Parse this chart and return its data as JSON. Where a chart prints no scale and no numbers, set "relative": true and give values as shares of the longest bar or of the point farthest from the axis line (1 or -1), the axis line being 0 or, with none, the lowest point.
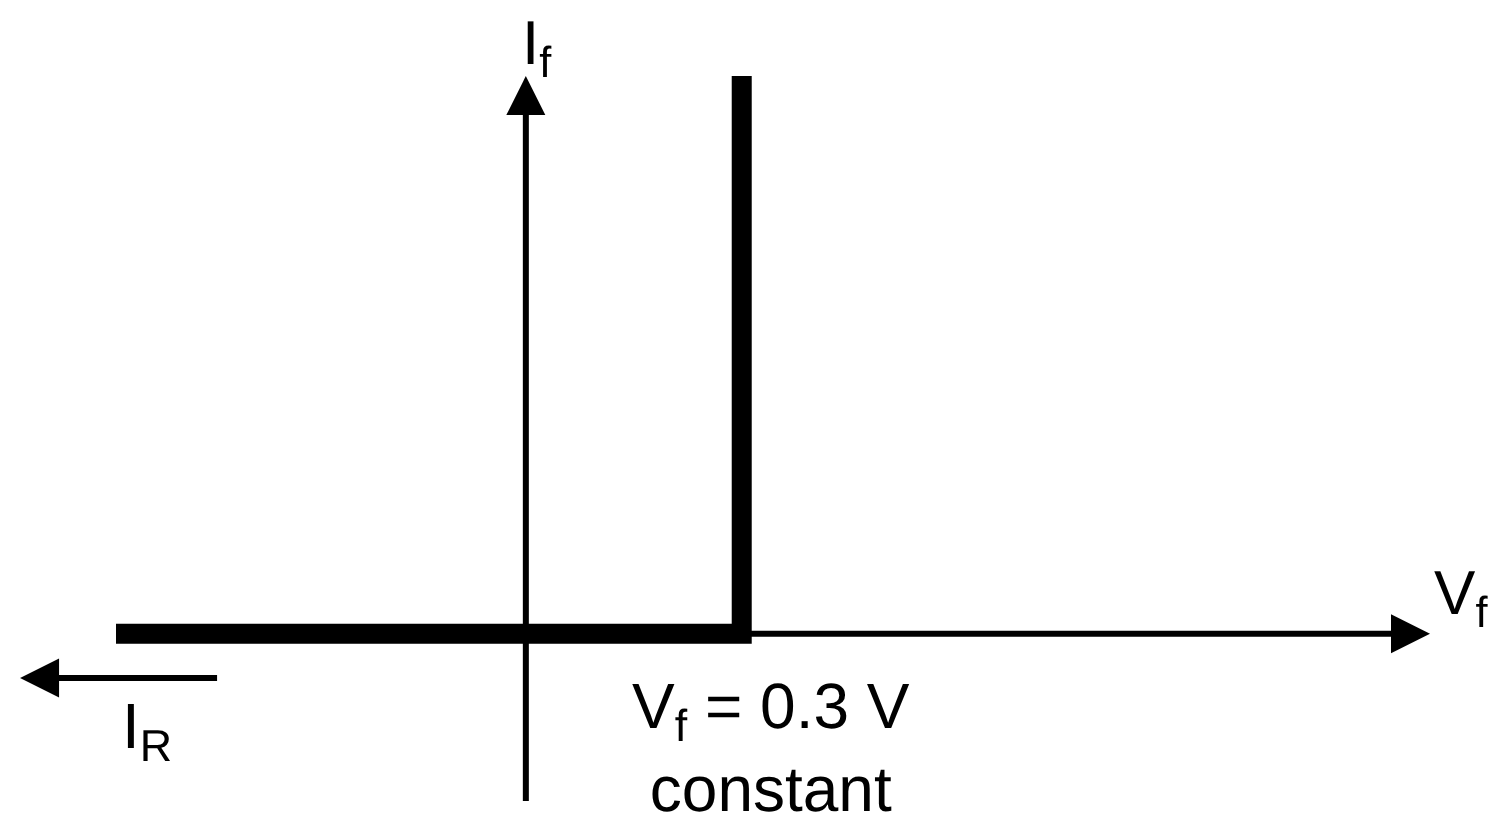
{
  "chart_data": {
    "type": "step",
    "relative": true,
    "categories": [
      null,
      null
    ],
    "values": [
      0,
      1
    ],
    "color": "#000000",
    "xlabel": "V$_{f}$",
    "ylabel": "I$_{f}$",
    "annotations": [
      "V$_{f}$ = 0.3 V\nconstant",
      "I$_{R}$"
    ],
    "marker": "none",
    "line_style": "solid"
  }
}
